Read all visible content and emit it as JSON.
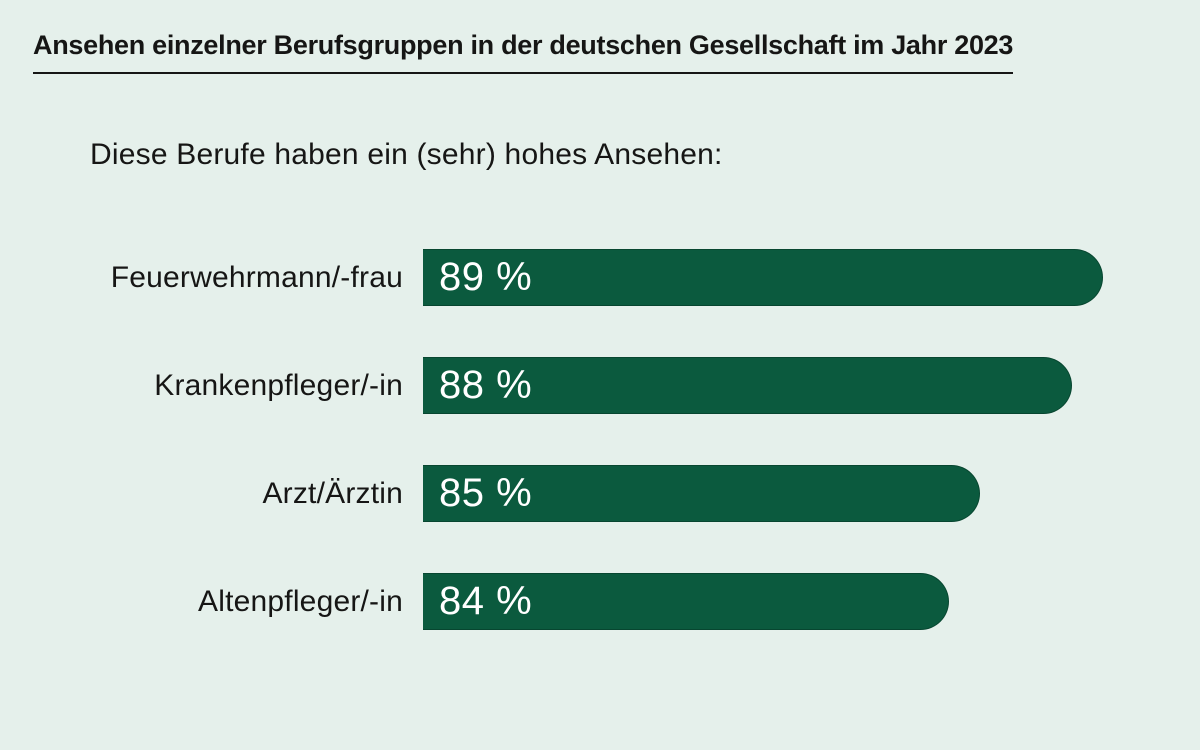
{
  "title": "Ansehen einzelner Berufsgruppen in der deutschen Gesellschaft im Jahr 2023",
  "subtitle": "Diese Berufe haben ein (sehr) hohes Ansehen:",
  "colors": {
    "background": "#e5f0eb",
    "bar_fill": "#0b5a3e",
    "bar_value_text": "#ffffff",
    "text": "#161615"
  },
  "chart_data": {
    "type": "bar",
    "orientation": "horizontal",
    "title": "Ansehen einzelner Berufsgruppen in der deutschen Gesellschaft im Jahr 2023",
    "subtitle": "Diese Berufe haben ein (sehr) hohes Ansehen:",
    "unit": "%",
    "categories": [
      "Feuerwehrmann/-frau",
      "Krankenpfleger/-in",
      "Arzt/Ärztin",
      "Altenpfleger/-in"
    ],
    "values": [
      89,
      88,
      85,
      84
    ],
    "value_labels": [
      "89 %",
      "88 %",
      "85 %",
      "84 %"
    ],
    "value_label_position": "inside-start",
    "grid": false,
    "legend": false,
    "axes_visible": false,
    "zero_based_scale": false,
    "category_label_position": "left-of-bar"
  }
}
